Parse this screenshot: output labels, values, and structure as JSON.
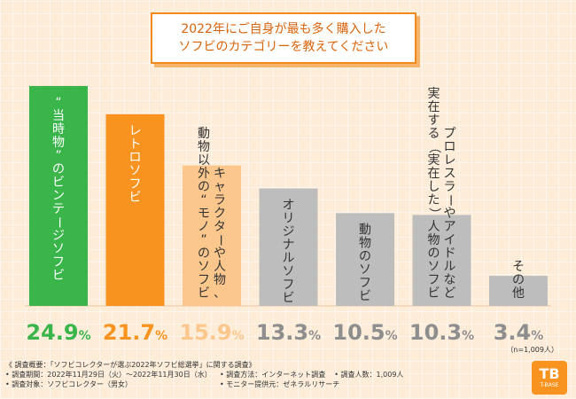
{
  "title": {
    "line1": "2022年にご自身が最も多く購入した",
    "line2": "ソフビのカテゴリーを教えてください"
  },
  "chart_data": {
    "type": "bar",
    "title": "2022年にご自身が最も多く購入したソフビのカテゴリーを教えてください",
    "unit": "%",
    "ylim": [
      0,
      26
    ],
    "categories": [
      "“当時物”のビンテージソフビ",
      "レトロソフビ",
      "動物以外の“モノ”のソフビ",
      "キャラクターや人物、",
      "オリジナルソフビ",
      "動物のソフビ",
      "実在する（実在した）人物のソフビ",
      "プロレスラーやアイドルなど",
      "その他"
    ],
    "bars": [
      {
        "label_columns": [
          "“当時物”のビンテージソフビ"
        ],
        "value": 24.9,
        "display": "24.9%",
        "color": "#3ab54a"
      },
      {
        "label_columns": [
          "レトロソフビ"
        ],
        "value": 21.7,
        "display": "21.7%",
        "color": "#f7931e"
      },
      {
        "label_columns": [
          "キャラクターや人物、",
          "動物以外の“モノ”のソフビ"
        ],
        "value": 15.9,
        "display": "15.9%",
        "color": "#fbc78d"
      },
      {
        "label_columns": [
          "オリジナルソフビ"
        ],
        "value": 13.3,
        "display": "13.3%",
        "color": "#bdbdbd"
      },
      {
        "label_columns": [
          "動物のソフビ"
        ],
        "value": 10.5,
        "display": "10.5%",
        "color": "#bdbdbd"
      },
      {
        "label_columns": [
          "プロレスラーやアイドルなど",
          "実在する（実在した）人物のソフビ"
        ],
        "value": 10.3,
        "display": "10.3%",
        "color": "#bdbdbd"
      },
      {
        "label_columns": [
          "その他"
        ],
        "value": 3.4,
        "display": "3.4%",
        "color": "#bdbdbd"
      }
    ],
    "sample_note": "（n=1,009人）"
  },
  "notes": {
    "overview": "《 調査概要：「ソフビコレクターが選ぶ2022年ソフビ総選挙」に関する調査》",
    "period": "• 調査期間：2022年11月29日（火）～2022年11月30日（水）",
    "method": "• 調査方法：インターネット調査",
    "count": "• 調査人数：1,009人",
    "target": "• 調査対象：ソフビコレクター（男女）",
    "provider": "• モニター提供元：ゼネラルリサーチ"
  },
  "logo": {
    "big": "TB",
    "small": "T-BASE"
  },
  "colors": {
    "accent": "#f08a1c",
    "green": "#3ab54a",
    "orange": "#f7931e",
    "light_orange": "#fbc78d",
    "gray": "#bdbdbd"
  }
}
